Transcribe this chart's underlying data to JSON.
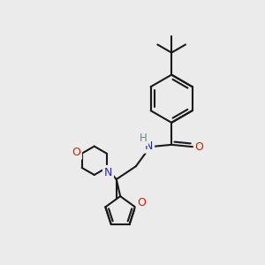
{
  "bg_color": "#ebebeb",
  "bond_color": "#1a1a1a",
  "bond_width": 1.5,
  "N_color": "#2020ee",
  "O_color": "#cc2200",
  "H_color": "#5a9090",
  "figsize": [
    3.0,
    3.0
  ],
  "dpi": 100,
  "xlim": [
    0,
    10
  ],
  "ylim": [
    0,
    10
  ]
}
